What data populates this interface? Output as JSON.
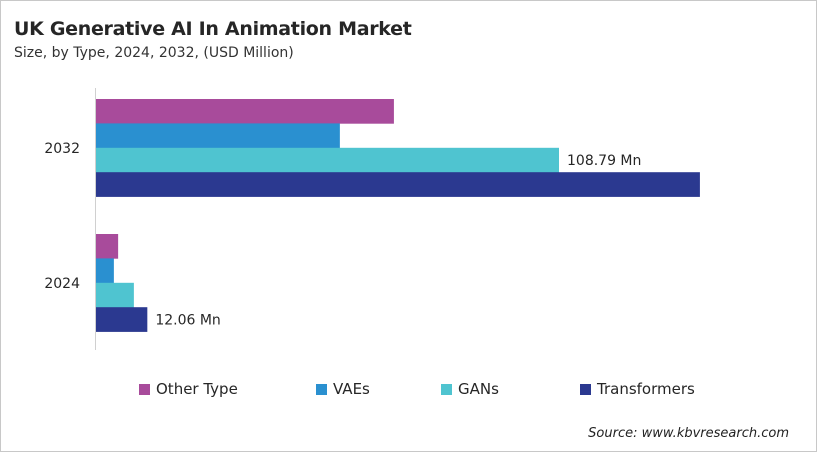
{
  "title": "UK Generative AI In Animation Market",
  "subtitle": "Size, by Type, 2024, 2032, (USD Million)",
  "source": "Source: www.kbvresearch.com",
  "chart_data": {
    "type": "bar",
    "orientation": "horizontal",
    "categories": [
      "2032",
      "2024"
    ],
    "series": [
      {
        "name": "Other Type",
        "color": "#A84B9B",
        "values": [
          70.0,
          5.2
        ]
      },
      {
        "name": "VAEs",
        "color": "#2A90D0",
        "values": [
          57.3,
          4.2
        ]
      },
      {
        "name": "GANs",
        "color": "#4FC4D0",
        "values": [
          108.79,
          8.9
        ]
      },
      {
        "name": "Transformers",
        "color": "#2B3990",
        "values": [
          141.9,
          12.06
        ]
      }
    ],
    "data_labels": [
      {
        "category": "2032",
        "series": "GANs",
        "text": "108.79 Mn"
      },
      {
        "category": "2024",
        "series": "Transformers",
        "text": "12.06 Mn"
      }
    ],
    "xlim": [
      0,
      142
    ],
    "grid": false,
    "legend": "bottom",
    "unit": "USD Million"
  }
}
